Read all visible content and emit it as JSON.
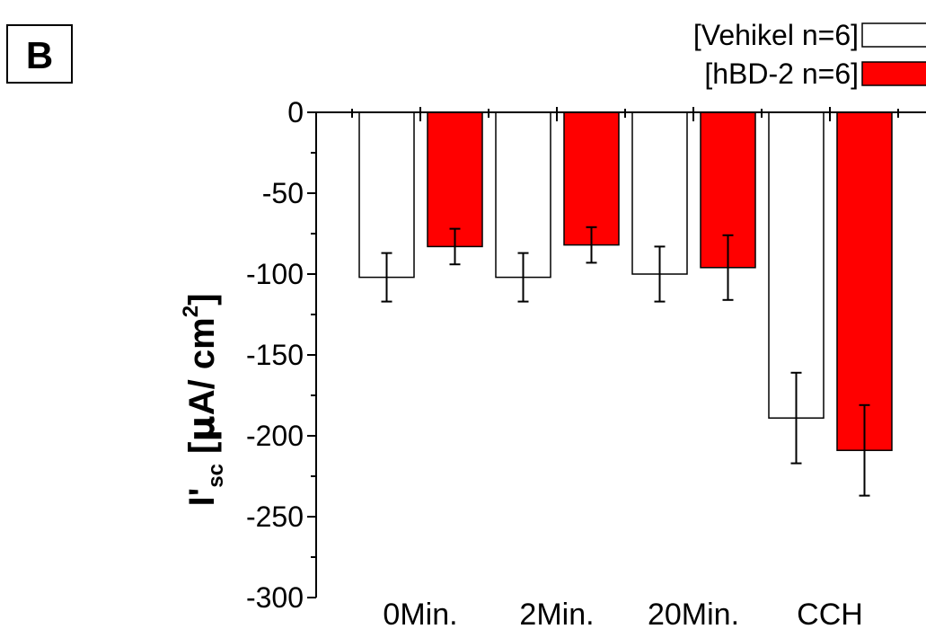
{
  "panel_label": "B",
  "colors": {
    "vehicle_fill": "#ffffff",
    "hbd2_fill": "#ff0000",
    "axis": "#000000"
  },
  "chart_data": {
    "type": "bar",
    "categories": [
      "0Min.",
      "2Min.",
      "20Min.",
      "CCH"
    ],
    "series": [
      {
        "name": "[Vehikel n=6]",
        "values": [
          -102,
          -102,
          -100,
          -189
        ],
        "errors": [
          15,
          15,
          17,
          28
        ]
      },
      {
        "name": "[hBD-2 n=6]",
        "values": [
          -83,
          -82,
          -96,
          -209
        ],
        "errors": [
          11,
          11,
          20,
          28
        ]
      }
    ],
    "ylabel": {
      "main": "I'",
      "subscript": "sc",
      "unit_prefix": " [",
      "mu": "µ",
      "unit_mid": "A/ cm",
      "superscript": "2",
      "unit_suffix": "]"
    },
    "ylim": [
      -300,
      0
    ],
    "yticks": [
      0,
      -50,
      -100,
      -150,
      -200,
      -250,
      -300
    ],
    "ytick_labels": [
      "0",
      "-50",
      "-100",
      "-150",
      "-200",
      "-250",
      "-300"
    ],
    "x_axis_position": "top",
    "legend_position": "top-right"
  }
}
